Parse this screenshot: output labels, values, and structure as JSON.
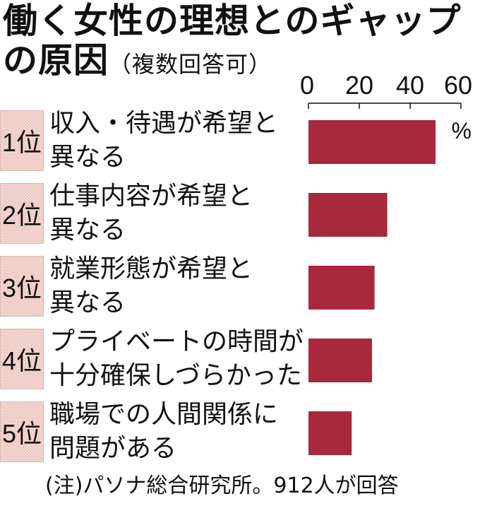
{
  "title_line1": "働く女性の理想とのギャップ",
  "title_line2": "の原因",
  "subtitle": "（複数回答可）",
  "unit": "%",
  "note": "(注)パソナ総合研究所。912人が回答",
  "colors": {
    "bar": "#a8283e",
    "rank_bg": "#f3d6d0",
    "rank_pattern": "#d9a79c"
  },
  "rows": [
    {
      "rank": "1位",
      "line1": "収入・待遇が希望と",
      "line2": "異なる"
    },
    {
      "rank": "2位",
      "line1": "仕事内容が希望と",
      "line2": "異なる"
    },
    {
      "rank": "3位",
      "line1": "就業形態が希望と",
      "line2": "異なる"
    },
    {
      "rank": "4位",
      "line1": "プライベートの時間が",
      "line2": "十分確保しづらかった"
    },
    {
      "rank": "5位",
      "line1": "職場での人間関係に",
      "line2": "問題がある"
    }
  ],
  "chart_data": {
    "type": "bar",
    "orientation": "horizontal",
    "title": "働く女性の理想とのギャップの原因",
    "subtitle": "（複数回答可）",
    "categories": [
      "収入・待遇が希望と異なる",
      "仕事内容が希望と異なる",
      "就業形態が希望と異なる",
      "プライベートの時間が十分確保しづらかった",
      "職場での人間関係に問題がある"
    ],
    "values": [
      50,
      31,
      26,
      25,
      17
    ],
    "xlim": [
      0,
      60
    ],
    "xticks": [
      "0",
      "20",
      "40",
      "60"
    ],
    "unit": "%",
    "grid": false,
    "legend": "none"
  }
}
